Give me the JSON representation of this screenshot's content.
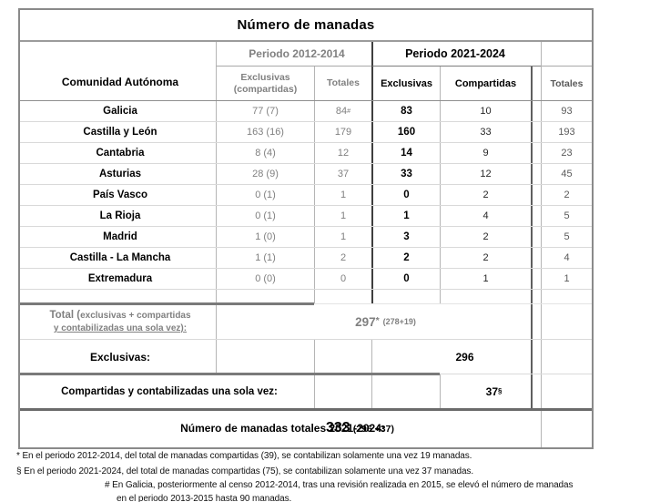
{
  "title": "Número de manadas",
  "header": {
    "first_col": "Comunidad Autónoma",
    "period_2012": "Periodo 2012-2014",
    "period_2021": "Periodo 2021-2024",
    "excl_comp_line1": "Exclusivas",
    "excl_comp_line2": "(compartidas)",
    "totales_2012": "Totales",
    "exclusivas_2021": "Exclusivas",
    "compartidas_2021": "Compartidas",
    "totales_2021": "Totales"
  },
  "rows": [
    {
      "name": "Galicia",
      "excl_comp_2012": "77 (7)",
      "tot_2012": "84",
      "tot_2012_sup": "#",
      "excl_2021": "83",
      "comp_2021": "10",
      "tot_2021": "93"
    },
    {
      "name": "Castilla y León",
      "excl_comp_2012": "163 (16)",
      "tot_2012": "179",
      "tot_2012_sup": "",
      "excl_2021": "160",
      "comp_2021": "33",
      "tot_2021": "193"
    },
    {
      "name": "Cantabria",
      "excl_comp_2012": "8 (4)",
      "tot_2012": "12",
      "tot_2012_sup": "",
      "excl_2021": "14",
      "comp_2021": "9",
      "tot_2021": "23"
    },
    {
      "name": "Asturias",
      "excl_comp_2012": "28 (9)",
      "tot_2012": "37",
      "tot_2012_sup": "",
      "excl_2021": "33",
      "comp_2021": "12",
      "tot_2021": "45"
    },
    {
      "name": "País Vasco",
      "excl_comp_2012": "0 (1)",
      "tot_2012": "1",
      "tot_2012_sup": "",
      "excl_2021": "0",
      "comp_2021": "2",
      "tot_2021": "2"
    },
    {
      "name": "La Rioja",
      "excl_comp_2012": "0 (1)",
      "tot_2012": "1",
      "tot_2012_sup": "",
      "excl_2021": "1",
      "comp_2021": "4",
      "tot_2021": "5"
    },
    {
      "name": "Madrid",
      "excl_comp_2012": "1 (0)",
      "tot_2012": "1",
      "tot_2012_sup": "",
      "excl_2021": "3",
      "comp_2021": "2",
      "tot_2021": "5"
    },
    {
      "name": "Castilla - La Mancha",
      "excl_comp_2012": "1 (1)",
      "tot_2012": "2",
      "tot_2012_sup": "",
      "excl_2021": "2",
      "comp_2021": "2",
      "tot_2021": "4"
    },
    {
      "name": "Extremadura",
      "excl_comp_2012": "0 (0)",
      "tot_2012": "0",
      "tot_2012_sup": "",
      "excl_2021": "0",
      "comp_2021": "1",
      "tot_2021": "1"
    }
  ],
  "summary": {
    "total_label_prefix": "Total (",
    "total_label_line1": "exclusivas + compartidas",
    "total_label_line2": "y contabilizadas una sola vez):",
    "total_value": "297",
    "total_value_sup": "*",
    "total_value_detail": "(278+19)",
    "exclusivas_label": "Exclusivas:",
    "exclusivas_value": "296",
    "compartidas_label": "Compartidas y contabilizadas una sola vez:",
    "compartidas_value": "37",
    "compartidas_value_sup": "§",
    "grand_total_label": "Número de manadas totales 2021-2024:",
    "grand_total_value": "333",
    "grand_total_detail": "(296 +37)"
  },
  "footnotes": [
    "* En el periodo 2012-2014, del total de manadas compartidas (39), se contabilizan solamente una vez 19 manadas.",
    "§ En el periodo 2021-2024, del total de manadas compartidas (75), se contabilizan solamente una vez 37 manadas.",
    "# En Galicia, posteriormente al censo 2012-2014, tras una revisión realizada en 2015, se elevó el número de manadas",
    "en el periodo 2013-2015 hasta 90 manadas."
  ],
  "colors": {
    "text_gray": "#808080",
    "text_dim_gray": "#595959",
    "text_black": "#1a1a1a",
    "divider_dark": "#3f3f3f",
    "divider_medium": "#5f5f5f",
    "border_outer": "#8a8a8a"
  }
}
